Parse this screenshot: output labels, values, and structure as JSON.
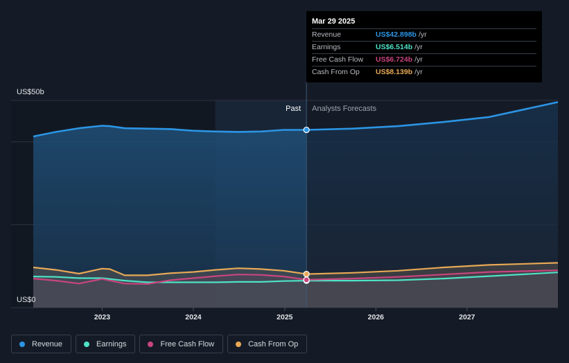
{
  "chart_data": {
    "type": "line",
    "x_start": "2022-03-31",
    "x_end": "2027-12-31",
    "past_end": "2025-03-29",
    "shade_start": "2024-03-29",
    "ylim": [
      0,
      50
    ],
    "y_top_label": "US$50b",
    "y_bottom_label": "US$0",
    "past_label": "Past",
    "forecast_label": "Analysts Forecasts",
    "x_ticks": [
      {
        "label": "2023",
        "date": "2023-01-01"
      },
      {
        "label": "2024",
        "date": "2024-01-01"
      },
      {
        "label": "2025",
        "date": "2025-01-01"
      },
      {
        "label": "2026",
        "date": "2026-01-01"
      },
      {
        "label": "2027",
        "date": "2027-01-01"
      }
    ],
    "series": [
      {
        "name": "Revenue",
        "color": "#2c95e5",
        "points": [
          [
            "2022-03-31",
            41.3
          ],
          [
            "2022-06-30",
            42.4
          ],
          [
            "2022-09-30",
            43.3
          ],
          [
            "2022-12-31",
            43.9
          ],
          [
            "2023-01-31",
            43.8
          ],
          [
            "2023-04-01",
            43.3
          ],
          [
            "2023-07-01",
            43.2
          ],
          [
            "2023-10-01",
            43.1
          ],
          [
            "2023-12-31",
            42.7
          ],
          [
            "2024-03-30",
            42.5
          ],
          [
            "2024-06-29",
            42.4
          ],
          [
            "2024-09-28",
            42.5
          ],
          [
            "2024-12-28",
            42.9
          ],
          [
            "2025-03-29",
            42.9
          ],
          [
            "2025-09-30",
            43.2
          ],
          [
            "2026-03-31",
            43.8
          ],
          [
            "2026-09-30",
            44.8
          ],
          [
            "2027-03-31",
            46.0
          ],
          [
            "2027-12-31",
            49.6
          ]
        ]
      },
      {
        "name": "Earnings",
        "color": "#4ee3c6",
        "points": [
          [
            "2022-03-31",
            7.5
          ],
          [
            "2022-06-30",
            7.4
          ],
          [
            "2022-09-30",
            7.1
          ],
          [
            "2022-12-31",
            7.1
          ],
          [
            "2023-04-01",
            6.5
          ],
          [
            "2023-07-01",
            6.1
          ],
          [
            "2023-10-01",
            6.1
          ],
          [
            "2023-12-31",
            6.1
          ],
          [
            "2024-03-30",
            6.1
          ],
          [
            "2024-06-29",
            6.2
          ],
          [
            "2024-09-28",
            6.2
          ],
          [
            "2024-12-28",
            6.4
          ],
          [
            "2025-03-29",
            6.5
          ],
          [
            "2025-09-30",
            6.5
          ],
          [
            "2026-03-31",
            6.6
          ],
          [
            "2026-09-30",
            7.0
          ],
          [
            "2027-03-31",
            7.6
          ],
          [
            "2027-12-31",
            8.5
          ]
        ]
      },
      {
        "name": "Free Cash Flow",
        "color": "#c9457f",
        "points": [
          [
            "2022-03-31",
            7.0
          ],
          [
            "2022-06-30",
            6.5
          ],
          [
            "2022-09-30",
            5.8
          ],
          [
            "2022-12-31",
            6.9
          ],
          [
            "2023-04-01",
            5.8
          ],
          [
            "2023-07-01",
            5.7
          ],
          [
            "2023-10-01",
            6.6
          ],
          [
            "2023-12-31",
            7.1
          ],
          [
            "2024-03-30",
            7.6
          ],
          [
            "2024-06-29",
            8.0
          ],
          [
            "2024-09-28",
            7.9
          ],
          [
            "2024-12-28",
            7.5
          ],
          [
            "2025-03-29",
            6.7
          ],
          [
            "2025-09-30",
            7.0
          ],
          [
            "2026-03-31",
            7.4
          ],
          [
            "2026-09-30",
            8.0
          ],
          [
            "2027-03-31",
            8.6
          ],
          [
            "2027-12-31",
            9.0
          ]
        ]
      },
      {
        "name": "Cash From Op",
        "color": "#e8a956",
        "points": [
          [
            "2022-03-31",
            9.7
          ],
          [
            "2022-06-30",
            9.1
          ],
          [
            "2022-09-30",
            8.2
          ],
          [
            "2022-12-31",
            9.4
          ],
          [
            "2023-01-31",
            9.3
          ],
          [
            "2023-04-01",
            7.8
          ],
          [
            "2023-07-01",
            7.8
          ],
          [
            "2023-10-01",
            8.3
          ],
          [
            "2023-12-31",
            8.6
          ],
          [
            "2024-03-30",
            9.1
          ],
          [
            "2024-06-29",
            9.5
          ],
          [
            "2024-09-28",
            9.3
          ],
          [
            "2024-12-28",
            8.9
          ],
          [
            "2025-03-29",
            8.1
          ],
          [
            "2025-09-30",
            8.4
          ],
          [
            "2026-03-31",
            8.9
          ],
          [
            "2026-09-30",
            9.7
          ],
          [
            "2027-03-31",
            10.3
          ],
          [
            "2027-12-31",
            10.8
          ]
        ]
      }
    ]
  },
  "tooltip": {
    "date": "Mar 29 2025",
    "rows": [
      {
        "label": "Revenue",
        "value": "US$42.898b",
        "unit": "/yr",
        "color": "#2c95e5"
      },
      {
        "label": "Earnings",
        "value": "US$6.514b",
        "unit": "/yr",
        "color": "#4ee3c6"
      },
      {
        "label": "Free Cash Flow",
        "value": "US$6.724b",
        "unit": "/yr",
        "color": "#c9457f"
      },
      {
        "label": "Cash From Op",
        "value": "US$8.139b",
        "unit": "/yr",
        "color": "#e8a956"
      }
    ]
  },
  "legend": [
    {
      "label": "Revenue",
      "color": "#2c95e5"
    },
    {
      "label": "Earnings",
      "color": "#4ee3c6"
    },
    {
      "label": "Free Cash Flow",
      "color": "#c9457f"
    },
    {
      "label": "Cash From Op",
      "color": "#e8a956"
    }
  ]
}
